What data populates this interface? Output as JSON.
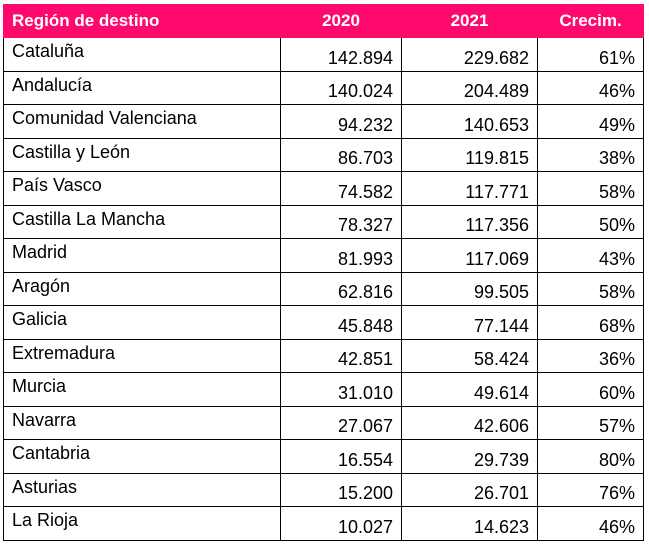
{
  "chart_data": {
    "type": "table",
    "columns": [
      "Región de destino",
      "2020",
      "2021",
      "Crecim."
    ],
    "rows": [
      {
        "region": "Cataluña",
        "v2020": "142.894",
        "v2021": "229.682",
        "growth": "61%"
      },
      {
        "region": "Andalucía",
        "v2020": "140.024",
        "v2021": "204.489",
        "growth": "46%"
      },
      {
        "region": "Comunidad Valenciana",
        "v2020": "94.232",
        "v2021": "140.653",
        "growth": "49%"
      },
      {
        "region": "Castilla y León",
        "v2020": "86.703",
        "v2021": "119.815",
        "growth": "38%"
      },
      {
        "region": "País Vasco",
        "v2020": "74.582",
        "v2021": "117.771",
        "growth": "58%"
      },
      {
        "region": "Castilla La Mancha",
        "v2020": "78.327",
        "v2021": "117.356",
        "growth": "50%"
      },
      {
        "region": "Madrid",
        "v2020": "81.993",
        "v2021": "117.069",
        "growth": "43%"
      },
      {
        "region": "Aragón",
        "v2020": "62.816",
        "v2021": "99.505",
        "growth": "58%"
      },
      {
        "region": "Galicia",
        "v2020": "45.848",
        "v2021": "77.144",
        "growth": "68%"
      },
      {
        "region": "Extremadura",
        "v2020": "42.851",
        "v2021": "58.424",
        "growth": "36%"
      },
      {
        "region": "Murcia",
        "v2020": "31.010",
        "v2021": "49.614",
        "growth": "60%"
      },
      {
        "region": "Navarra",
        "v2020": "27.067",
        "v2021": "42.606",
        "growth": "57%"
      },
      {
        "region": "Cantabria",
        "v2020": "16.554",
        "v2021": "29.739",
        "growth": "80%"
      },
      {
        "region": "Asturias",
        "v2020": "15.200",
        "v2021": "26.701",
        "growth": "76%"
      },
      {
        "region": "La Rioja",
        "v2020": "10.027",
        "v2021": "14.623",
        "growth": "46%"
      }
    ]
  },
  "colors": {
    "header_background": "#ff0a6c",
    "header_text": "#ffffff",
    "border": "#000000"
  }
}
